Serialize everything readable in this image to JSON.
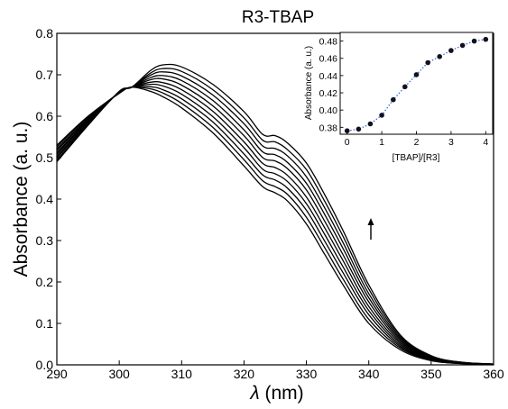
{
  "chart_data": [
    {
      "type": "line",
      "title": "R3-TBAP",
      "xlabel_symbol": "λ",
      "xlabel_unit": " (nm)",
      "ylabel": "Absorbance (a. u.)",
      "xlim": [
        290,
        360
      ],
      "ylim": [
        0.0,
        0.8
      ],
      "x_ticks": [
        "290",
        "300",
        "310",
        "320",
        "330",
        "340",
        "350",
        "360"
      ],
      "y_ticks": [
        "0.0",
        "0.1",
        "0.2",
        "0.3",
        "0.4",
        "0.5",
        "0.6",
        "0.7",
        "0.8"
      ],
      "grid": false,
      "annotation": "arrow-up at ~340 nm",
      "x": [
        290,
        295,
        300,
        302,
        305,
        307,
        310,
        315,
        320,
        323,
        325,
        327,
        330,
        333,
        336,
        340,
        345,
        350,
        355,
        360
      ],
      "series": [
        {
          "values": [
            0.53,
            0.6,
            0.655,
            0.67,
            0.66,
            0.647,
            0.62,
            0.56,
            0.48,
            0.43,
            0.415,
            0.395,
            0.34,
            0.265,
            0.19,
            0.1,
            0.037,
            0.01,
            0.003,
            0.001
          ]
        },
        {
          "values": [
            0.526,
            0.598,
            0.656,
            0.67,
            0.666,
            0.656,
            0.631,
            0.573,
            0.495,
            0.444,
            0.43,
            0.411,
            0.356,
            0.281,
            0.204,
            0.11,
            0.041,
            0.011,
            0.003,
            0.001
          ]
        },
        {
          "values": [
            0.521,
            0.595,
            0.656,
            0.67,
            0.671,
            0.664,
            0.642,
            0.586,
            0.509,
            0.458,
            0.446,
            0.426,
            0.373,
            0.297,
            0.219,
            0.121,
            0.045,
            0.013,
            0.004,
            0.001
          ]
        },
        {
          "values": [
            0.517,
            0.593,
            0.657,
            0.67,
            0.677,
            0.673,
            0.653,
            0.599,
            0.524,
            0.472,
            0.461,
            0.442,
            0.389,
            0.313,
            0.233,
            0.131,
            0.049,
            0.014,
            0.004,
            0.001
          ]
        },
        {
          "values": [
            0.512,
            0.59,
            0.657,
            0.67,
            0.682,
            0.681,
            0.664,
            0.612,
            0.538,
            0.486,
            0.476,
            0.457,
            0.405,
            0.329,
            0.248,
            0.141,
            0.053,
            0.015,
            0.004,
            0.001
          ]
        },
        {
          "values": [
            0.508,
            0.588,
            0.658,
            0.67,
            0.688,
            0.69,
            0.675,
            0.625,
            0.553,
            0.5,
            0.492,
            0.473,
            0.422,
            0.345,
            0.262,
            0.152,
            0.057,
            0.017,
            0.005,
            0.002
          ]
        },
        {
          "values": [
            0.503,
            0.585,
            0.658,
            0.67,
            0.693,
            0.698,
            0.686,
            0.638,
            0.567,
            0.514,
            0.507,
            0.488,
            0.438,
            0.361,
            0.277,
            0.162,
            0.061,
            0.018,
            0.005,
            0.002
          ]
        },
        {
          "values": [
            0.499,
            0.583,
            0.659,
            0.67,
            0.699,
            0.707,
            0.697,
            0.651,
            0.582,
            0.528,
            0.522,
            0.504,
            0.454,
            0.377,
            0.291,
            0.172,
            0.065,
            0.019,
            0.005,
            0.002
          ]
        },
        {
          "values": [
            0.494,
            0.58,
            0.659,
            0.67,
            0.704,
            0.715,
            0.708,
            0.664,
            0.596,
            0.542,
            0.538,
            0.519,
            0.471,
            0.393,
            0.306,
            0.183,
            0.069,
            0.021,
            0.006,
            0.002
          ]
        },
        {
          "values": [
            0.49,
            0.578,
            0.66,
            0.67,
            0.71,
            0.724,
            0.719,
            0.677,
            0.611,
            0.556,
            0.553,
            0.535,
            0.487,
            0.409,
            0.32,
            0.193,
            0.073,
            0.022,
            0.006,
            0.002
          ]
        }
      ]
    },
    {
      "type": "scatter",
      "xlabel": "[TBAP]/[R3]",
      "ylabel": "Absorbance (a. u.)",
      "xlim": [
        -0.2,
        4.2
      ],
      "ylim": [
        0.372,
        0.49
      ],
      "x_ticks": [
        "0",
        "1",
        "2",
        "3",
        "4"
      ],
      "y_ticks": [
        "0.38",
        "0.40",
        "0.42",
        "0.44",
        "0.46",
        "0.48"
      ],
      "x": [
        0.0,
        0.33,
        0.67,
        1.0,
        1.33,
        1.67,
        2.0,
        2.33,
        2.67,
        3.0,
        3.33,
        3.67,
        4.0
      ],
      "values": [
        0.376,
        0.378,
        0.384,
        0.394,
        0.412,
        0.427,
        0.441,
        0.455,
        0.462,
        0.469,
        0.475,
        0.48,
        0.482
      ],
      "fit_line": "dotted blue",
      "colors": {
        "points": "#111122",
        "fit": "#3a6fd1"
      }
    }
  ]
}
